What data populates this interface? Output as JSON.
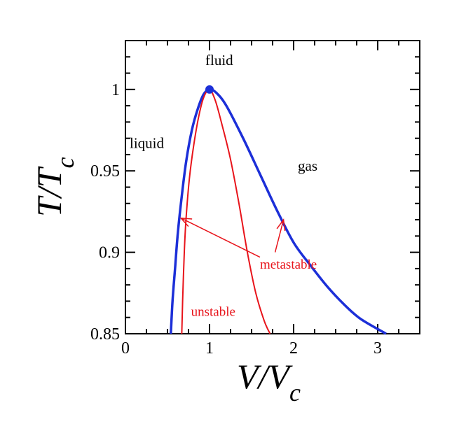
{
  "chart_data": {
    "type": "line",
    "xlabel_main": "V/V",
    "xlabel_sub": "c",
    "ylabel_main": "T/T",
    "ylabel_sub": "c",
    "xlim": [
      0,
      3.5
    ],
    "ylim": [
      0.85,
      1.03
    ],
    "x_ticks": [
      {
        "value": 0,
        "label": "0"
      },
      {
        "value": 1,
        "label": "1"
      },
      {
        "value": 2,
        "label": "2"
      },
      {
        "value": 3,
        "label": "3"
      }
    ],
    "y_ticks": [
      {
        "value": 0.85,
        "label": "0.85"
      },
      {
        "value": 0.9,
        "label": "0.9"
      },
      {
        "value": 0.95,
        "label": "0.95"
      },
      {
        "value": 1.0,
        "label": "1"
      }
    ],
    "grid": false,
    "series": [
      {
        "color": "#1c2fd8",
        "points": [
          [
            0.54,
            0.85
          ],
          [
            0.56,
            0.87
          ],
          [
            0.59,
            0.89
          ],
          [
            0.62,
            0.91
          ],
          [
            0.66,
            0.93
          ],
          [
            0.72,
            0.955
          ],
          [
            0.79,
            0.975
          ],
          [
            0.86,
            0.988
          ],
          [
            0.93,
            0.997
          ],
          [
            1.0,
            1.0
          ],
          [
            1.08,
            0.998
          ],
          [
            1.2,
            0.99
          ],
          [
            1.4,
            0.97
          ],
          [
            1.6,
            0.948
          ],
          [
            1.8,
            0.926
          ],
          [
            2.0,
            0.906
          ],
          [
            2.2,
            0.892
          ],
          [
            2.4,
            0.879
          ],
          [
            2.6,
            0.868
          ],
          [
            2.8,
            0.859
          ],
          [
            3.1,
            0.85
          ]
        ]
      },
      {
        "color": "#e8141b",
        "points": [
          [
            0.67,
            0.85
          ],
          [
            0.68,
            0.87
          ],
          [
            0.7,
            0.9
          ],
          [
            0.72,
            0.92
          ],
          [
            0.76,
            0.945
          ],
          [
            0.81,
            0.965
          ],
          [
            0.87,
            0.983
          ],
          [
            0.93,
            0.995
          ],
          [
            1.0,
            1.0
          ],
          [
            1.07,
            0.993
          ],
          [
            1.15,
            0.978
          ],
          [
            1.25,
            0.957
          ],
          [
            1.35,
            0.93
          ],
          [
            1.45,
            0.9
          ],
          [
            1.55,
            0.875
          ],
          [
            1.65,
            0.858
          ],
          [
            1.72,
            0.85
          ]
        ]
      }
    ],
    "critical_point": {
      "x": 1.0,
      "y": 1.0,
      "color": "#1c2fd8"
    },
    "annotations": [
      {
        "text": "fluid",
        "x": 0.95,
        "y": 1.015,
        "color": "#000000"
      },
      {
        "text": "liquid",
        "x": 0.05,
        "y": 0.964,
        "color": "#000000"
      },
      {
        "text": "gas",
        "x": 2.05,
        "y": 0.95,
        "color": "#000000"
      },
      {
        "text": "metastable",
        "x": 1.6,
        "y": 0.89,
        "color": "#e8141b"
      },
      {
        "text": "unstable",
        "x": 0.78,
        "y": 0.861,
        "color": "#e8141b"
      }
    ],
    "arrows": [
      {
        "from": [
          1.6,
          0.897
        ],
        "to": [
          0.66,
          0.921
        ],
        "color": "#e8141b"
      },
      {
        "from": [
          1.78,
          0.9
        ],
        "to": [
          1.88,
          0.92
        ],
        "color": "#e8141b"
      }
    ]
  }
}
